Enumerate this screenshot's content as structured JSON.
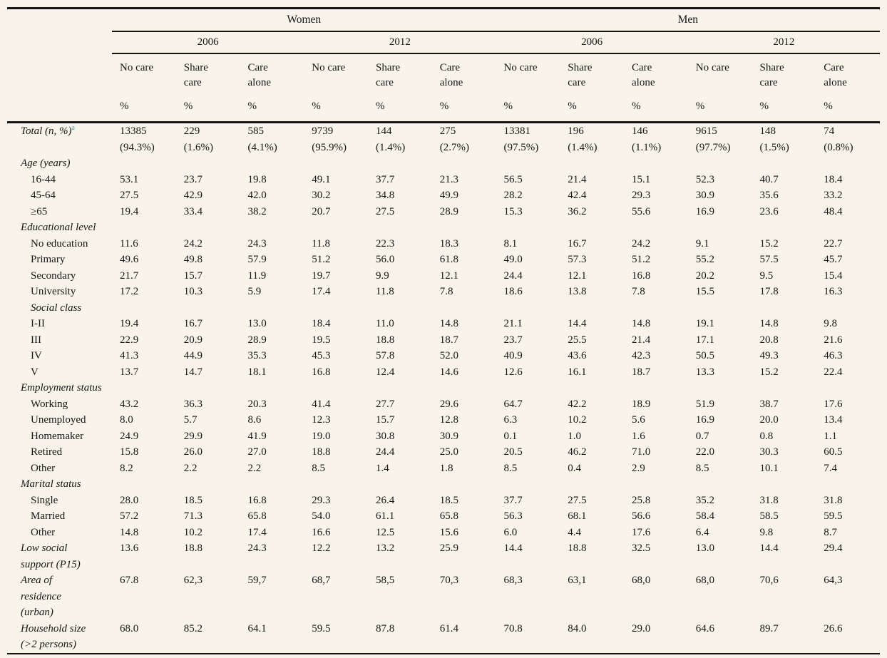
{
  "page": {
    "background_color": "#f8f4e9",
    "rule_color": "#141414",
    "footnote_color": "#4d9fd6"
  },
  "table": {
    "group_headers": [
      {
        "label": "Women",
        "span": 6
      },
      {
        "label": "Men",
        "span": 6
      }
    ],
    "year_headers": [
      {
        "label": "2006",
        "span": 3
      },
      {
        "label": "2012",
        "span": 3
      },
      {
        "label": "2006",
        "span": 3
      },
      {
        "label": "2012",
        "span": 3
      }
    ],
    "care_headers": [
      "No care",
      "Share\ncare",
      "Care\nalone",
      "No care",
      "Share\ncare",
      "Care\nalone",
      "No care",
      "Share\ncare",
      "Care\nalone",
      "No care",
      "Share\ncare",
      "Care\nalone"
    ],
    "percent_row": [
      "%",
      "%",
      "%",
      "%",
      "%",
      "%",
      "%",
      "%",
      "%",
      "%",
      "%",
      "%"
    ],
    "rows": [
      {
        "label": "Total (n, %)",
        "sup": "a",
        "italic": true,
        "indent": 1,
        "values": [
          "13385\n(94.3%)",
          "229\n(1.6%)",
          "585\n(4.1%)",
          "9739\n(95.9%)",
          "144\n(1.4%)",
          "275\n(2.7%)",
          "13381\n(97.5%)",
          "196\n(1.4%)",
          "146\n(1.1%)",
          "9615\n(97.7%)",
          "148\n(1.5%)",
          "74\n(0.8%)"
        ]
      },
      {
        "label": "Age (years)",
        "italic": true,
        "indent": 1,
        "values": null
      },
      {
        "label": "16-44",
        "italic": false,
        "indent": 2,
        "values": [
          "53.1",
          "23.7",
          "19.8",
          "49.1",
          "37.7",
          "21.3",
          "56.5",
          "21.4",
          "15.1",
          "52.3",
          "40.7",
          "18.4"
        ]
      },
      {
        "label": "45-64",
        "italic": false,
        "indent": 2,
        "values": [
          "27.5",
          "42.9",
          "42.0",
          "30.2",
          "34.8",
          "49.9",
          "28.2",
          "42.4",
          "29.3",
          "30.9",
          "35.6",
          "33.2"
        ]
      },
      {
        "label": "≥65",
        "italic": false,
        "indent": 2,
        "values": [
          "19.4",
          "33.4",
          "38.2",
          "20.7",
          "27.5",
          "28.9",
          "15.3",
          "36.2",
          "55.6",
          "16.9",
          "23.6",
          "48.4"
        ]
      },
      {
        "label": "Educational level",
        "italic": true,
        "indent": 1,
        "values": null
      },
      {
        "label": "No education",
        "italic": false,
        "indent": 2,
        "values": [
          "11.6",
          "24.2",
          "24.3",
          "11.8",
          "22.3",
          "18.3",
          "8.1",
          "16.7",
          "24.2",
          "9.1",
          "15.2",
          "22.7"
        ]
      },
      {
        "label": "Primary",
        "italic": false,
        "indent": 2,
        "values": [
          "49.6",
          "49.8",
          "57.9",
          "51.2",
          "56.0",
          "61.8",
          "49.0",
          "57.3",
          "51.2",
          "55.2",
          "57.5",
          "45.7"
        ]
      },
      {
        "label": "Secondary",
        "italic": false,
        "indent": 2,
        "values": [
          "21.7",
          "15.7",
          "11.9",
          "19.7",
          "9.9",
          "12.1",
          "24.4",
          "12.1",
          "16.8",
          "20.2",
          "9.5",
          "15.4"
        ]
      },
      {
        "label": "University",
        "italic": false,
        "indent": 2,
        "values": [
          "17.2",
          "10.3",
          "5.9",
          "17.4",
          "11.8",
          "7.8",
          "18.6",
          "13.8",
          "7.8",
          "15.5",
          "17.8",
          "16.3"
        ]
      },
      {
        "label": "Social class",
        "italic": true,
        "indent": 2,
        "values": null
      },
      {
        "label": "I-II",
        "italic": false,
        "indent": 2,
        "values": [
          "19.4",
          "16.7",
          "13.0",
          "18.4",
          "11.0",
          "14.8",
          "21.1",
          "14.4",
          "14.8",
          "19.1",
          "14.8",
          "9.8"
        ]
      },
      {
        "label": "III",
        "italic": false,
        "indent": 2,
        "values": [
          "22.9",
          "20.9",
          "28.9",
          "19.5",
          "18.8",
          "18.7",
          "23.7",
          "25.5",
          "21.4",
          "17.1",
          "20.8",
          "21.6"
        ]
      },
      {
        "label": "IV",
        "italic": false,
        "indent": 2,
        "values": [
          "41.3",
          "44.9",
          "35.3",
          "45.3",
          "57.8",
          "52.0",
          "40.9",
          "43.6",
          "42.3",
          "50.5",
          "49.3",
          "46.3"
        ]
      },
      {
        "label": "V",
        "italic": false,
        "indent": 2,
        "values": [
          "13.7",
          "14.7",
          "18.1",
          "16.8",
          "12.4",
          "14.6",
          "12.6",
          "16.1",
          "18.7",
          "13.3",
          "15.2",
          "22.4"
        ]
      },
      {
        "label": "Employment status",
        "italic": true,
        "indent": 1,
        "values": null
      },
      {
        "label": "Working",
        "italic": false,
        "indent": 2,
        "values": [
          "43.2",
          "36.3",
          "20.3",
          "41.4",
          "27.7",
          "29.6",
          "64.7",
          "42.2",
          "18.9",
          "51.9",
          "38.7",
          "17.6"
        ]
      },
      {
        "label": "Unemployed",
        "italic": false,
        "indent": 2,
        "values": [
          "8.0",
          "5.7",
          "8.6",
          "12.3",
          "15.7",
          "12.8",
          "6.3",
          "10.2",
          "5.6",
          "16.9",
          "20.0",
          "13.4"
        ]
      },
      {
        "label": "Homemaker",
        "italic": false,
        "indent": 2,
        "values": [
          "24.9",
          "29.9",
          "41.9",
          "19.0",
          "30.8",
          "30.9",
          "0.1",
          "1.0",
          "1.6",
          "0.7",
          "0.8",
          "1.1"
        ]
      },
      {
        "label": "Retired",
        "italic": false,
        "indent": 2,
        "values": [
          "15.8",
          "26.0",
          "27.0",
          "18.8",
          "24.4",
          "25.0",
          "20.5",
          "46.2",
          "71.0",
          "22.0",
          "30.3",
          "60.5"
        ]
      },
      {
        "label": "Other",
        "italic": false,
        "indent": 2,
        "values": [
          "8.2",
          "2.2",
          "2.2",
          "8.5",
          "1.4",
          "1.8",
          "8.5",
          "0.4",
          "2.9",
          "8.5",
          "10.1",
          "7.4"
        ]
      },
      {
        "label": "Marital status",
        "italic": true,
        "indent": 1,
        "values": null
      },
      {
        "label": "Single",
        "italic": false,
        "indent": 2,
        "values": [
          "28.0",
          "18.5",
          "16.8",
          "29.3",
          "26.4",
          "18.5",
          "37.7",
          "27.5",
          "25.8",
          "35.2",
          "31.8",
          "31.8"
        ]
      },
      {
        "label": "Married",
        "italic": false,
        "indent": 2,
        "values": [
          "57.2",
          "71.3",
          "65.8",
          "54.0",
          "61.1",
          "65.8",
          "56.3",
          "68.1",
          "56.6",
          "58.4",
          "58.5",
          "59.5"
        ]
      },
      {
        "label": "Other",
        "italic": false,
        "indent": 2,
        "values": [
          "14.8",
          "10.2",
          "17.4",
          "16.6",
          "12.5",
          "15.6",
          "6.0",
          "4.4",
          "17.6",
          "6.4",
          "9.8",
          "8.7"
        ]
      },
      {
        "label": "Low social\nsupport (P15)",
        "italic": true,
        "indent": 1,
        "values": [
          "13.6",
          "18.8",
          "24.3",
          "12.2",
          "13.2",
          "25.9",
          "14.4",
          "18.8",
          "32.5",
          "13.0",
          "14.4",
          "29.4"
        ]
      },
      {
        "label": "Area of\nresidence\n(urban)",
        "italic": true,
        "indent": 1,
        "values": [
          "67.8",
          "62,3",
          "59,7",
          "68,7",
          "58,5",
          "70,3",
          "68,3",
          "63,1",
          "68,0",
          "68,0",
          "70,6",
          "64,3"
        ]
      },
      {
        "label": "Household size\n(>2 persons)",
        "italic": true,
        "indent": 1,
        "values": [
          "68.0",
          "85.2",
          "64.1",
          "59.5",
          "87.8",
          "61.4",
          "70.8",
          "84.0",
          "29.0",
          "64.6",
          "89.7",
          "26.6"
        ]
      }
    ]
  }
}
